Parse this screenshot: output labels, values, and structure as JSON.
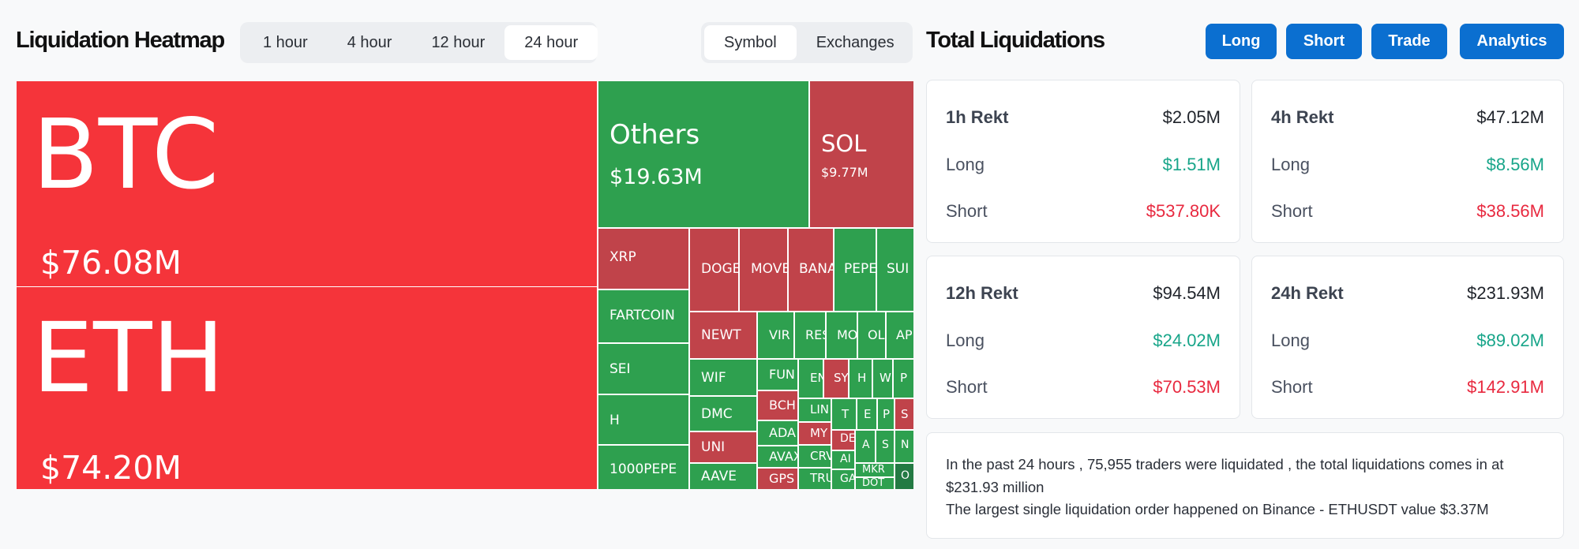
{
  "heatmap": {
    "title": "Liquidation Heatmap",
    "time_tabs": [
      "1 hour",
      "4 hour",
      "12 hour",
      "24 hour"
    ],
    "active_time_tab": "24 hour",
    "group_tabs": [
      "Symbol",
      "Exchanges"
    ],
    "active_group_tab": "Symbol",
    "colors": {
      "red": "#f5343a",
      "dark_red": "#c0434a",
      "green": "#2ea04f",
      "dark_green": "#237a43"
    },
    "tiles": [
      {
        "symbol": "BTC",
        "value": "$76.08M"
      },
      {
        "symbol": "ETH",
        "value": "$74.20M"
      },
      {
        "symbol": "Others",
        "value": "$19.63M"
      },
      {
        "symbol": "SOL",
        "value": "$9.77M"
      },
      {
        "symbol": "XRP"
      },
      {
        "symbol": "DOGE"
      },
      {
        "symbol": "MOVE"
      },
      {
        "symbol": "BANA"
      },
      {
        "symbol": "PEPE"
      },
      {
        "symbol": "SUI"
      },
      {
        "symbol": "FARTCOIN"
      },
      {
        "symbol": "NEWT"
      },
      {
        "symbol": "VIR"
      },
      {
        "symbol": "RES"
      },
      {
        "symbol": "MO"
      },
      {
        "symbol": "OL"
      },
      {
        "symbol": "AP"
      },
      {
        "symbol": "SEI"
      },
      {
        "symbol": "WIF"
      },
      {
        "symbol": "FUN"
      },
      {
        "symbol": "EN"
      },
      {
        "symbol": "SY"
      },
      {
        "symbol": "H"
      },
      {
        "symbol": "W"
      },
      {
        "symbol": "P"
      },
      {
        "symbol": "H"
      },
      {
        "symbol": "DMC"
      },
      {
        "symbol": "BCH"
      },
      {
        "symbol": "LIN"
      },
      {
        "symbol": "T"
      },
      {
        "symbol": "E"
      },
      {
        "symbol": "P"
      },
      {
        "symbol": "S"
      },
      {
        "symbol": "ADA"
      },
      {
        "symbol": "MY"
      },
      {
        "symbol": "DE"
      },
      {
        "symbol": "A"
      },
      {
        "symbol": "S"
      },
      {
        "symbol": "N"
      },
      {
        "symbol": "1000PEPE"
      },
      {
        "symbol": "UNI"
      },
      {
        "symbol": "AVAX"
      },
      {
        "symbol": "CRV"
      },
      {
        "symbol": "AI"
      },
      {
        "symbol": "MKR"
      },
      {
        "symbol": "AAVE"
      },
      {
        "symbol": "GPS"
      },
      {
        "symbol": "TRU"
      },
      {
        "symbol": "GA"
      },
      {
        "symbol": "DOT"
      },
      {
        "symbol": "O"
      }
    ]
  },
  "totals": {
    "title": "Total Liquidations",
    "buttons": [
      "Long",
      "Short",
      "Trade",
      "Analytics"
    ],
    "cards": [
      {
        "label": "1h Rekt",
        "total": "$2.05M",
        "long_label": "Long",
        "long": "$1.51M",
        "short_label": "Short",
        "short": "$537.80K"
      },
      {
        "label": "4h Rekt",
        "total": "$47.12M",
        "long_label": "Long",
        "long": "$8.56M",
        "short_label": "Short",
        "short": "$38.56M"
      },
      {
        "label": "12h Rekt",
        "total": "$94.54M",
        "long_label": "Long",
        "long": "$24.02M",
        "short_label": "Short",
        "short": "$70.53M"
      },
      {
        "label": "24h Rekt",
        "total": "$231.93M",
        "long_label": "Long",
        "long": "$89.02M",
        "short_label": "Short",
        "short": "$142.91M"
      }
    ],
    "summary_line1": "In the past 24 hours , 75,955 traders were liquidated , the total liquidations comes in at $231.93 million",
    "summary_line2": "The largest single liquidation order happened on Binance - ETHUSDT value $3.37M"
  }
}
